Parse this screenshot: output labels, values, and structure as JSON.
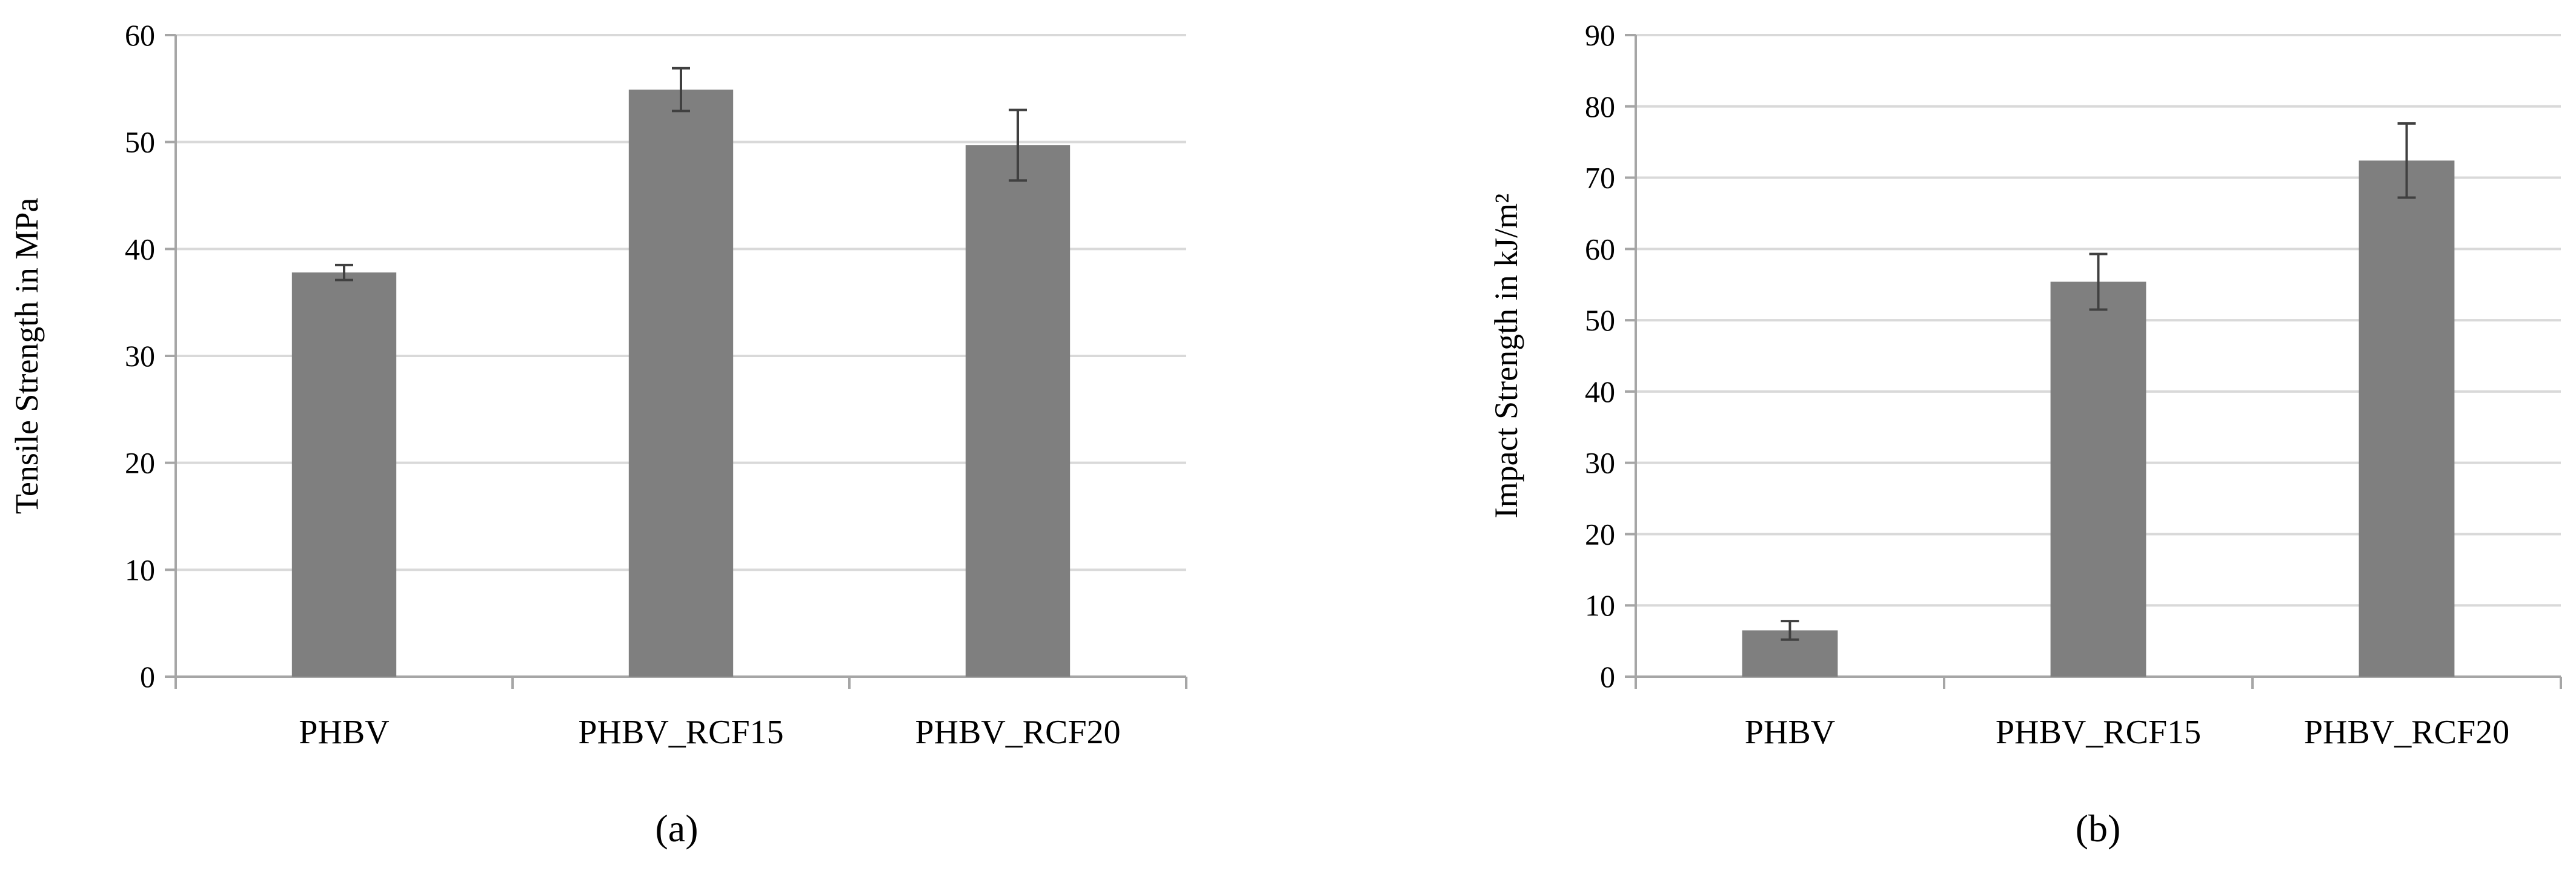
{
  "chart_data": [
    {
      "type": "bar",
      "panel_label": "(a)",
      "ylabel": "Tensile Strength in MPa",
      "categories": [
        "PHBV",
        "PHBV_RCF15",
        "PHBV_RCF20"
      ],
      "values": [
        37.8,
        54.9,
        49.7
      ],
      "error": [
        0.7,
        2.0,
        3.3
      ],
      "ylim": [
        0,
        60
      ],
      "yticks": [
        0,
        10,
        20,
        30,
        40,
        50,
        60
      ],
      "grid": true,
      "legend": "none",
      "bar_color": "#7f7f7f"
    },
    {
      "type": "bar",
      "panel_label": "(b)",
      "ylabel": "Impact Strength in kJ/m²",
      "categories": [
        "PHBV",
        "PHBV_RCF15",
        "PHBV_RCF20"
      ],
      "values": [
        6.5,
        55.4,
        72.4
      ],
      "error": [
        1.3,
        3.9,
        5.2
      ],
      "ylim": [
        0,
        90
      ],
      "yticks": [
        0,
        10,
        20,
        30,
        40,
        50,
        60,
        70,
        80,
        90
      ],
      "grid": true,
      "legend": "none",
      "bar_color": "#7f7f7f"
    }
  ]
}
